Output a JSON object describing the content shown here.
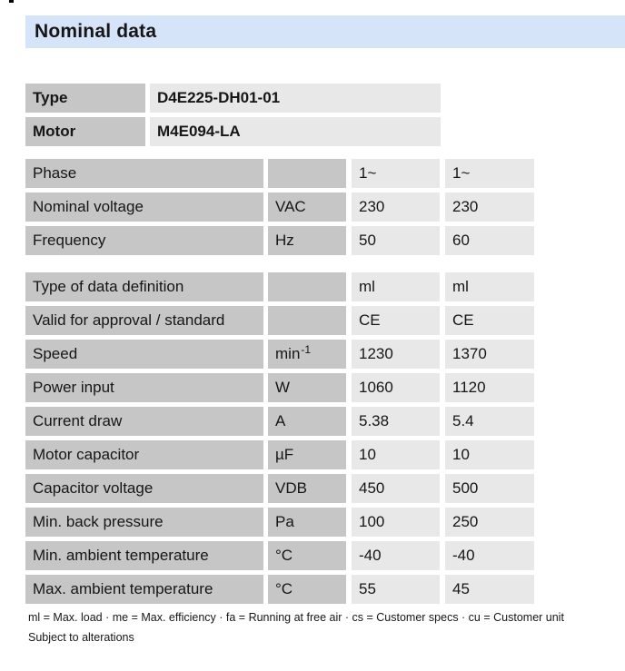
{
  "page": {
    "title": "Nominal data",
    "footnote_legend": "ml = Max. load · me = Max. efficiency · fa = Running at free air · cs = Customer specs · cu = Customer unit",
    "footnote_alterations": "Subject to alterations"
  },
  "colors": {
    "title_band_bg": "#d6e4fa",
    "label_cell_bg": "#c6c6c6",
    "value_cell_bg": "#e8e8e8",
    "text": "#161616"
  },
  "identification": {
    "rows": [
      {
        "label": "Type",
        "value": "D4E225-DH01-01"
      },
      {
        "label": "Motor",
        "value": "M4E094-LA"
      }
    ]
  },
  "spec_tables": [
    {
      "rows": [
        {
          "label": "Phase",
          "unit": "",
          "unit_sup": "",
          "v1": "1~",
          "v2": "1~"
        },
        {
          "label": "Nominal voltage",
          "unit": "VAC",
          "unit_sup": "",
          "v1": "230",
          "v2": "230"
        },
        {
          "label": "Frequency",
          "unit": "Hz",
          "unit_sup": "",
          "v1": "50",
          "v2": "60"
        }
      ]
    },
    {
      "rows": [
        {
          "label": "Type of data definition",
          "unit": "",
          "unit_sup": "",
          "v1": "ml",
          "v2": "ml"
        },
        {
          "label": "Valid for approval / standard",
          "unit": "",
          "unit_sup": "",
          "v1": "CE",
          "v2": "CE"
        },
        {
          "label": "Speed",
          "unit": "min",
          "unit_sup": "-1",
          "v1": "1230",
          "v2": "1370"
        },
        {
          "label": "Power input",
          "unit": "W",
          "unit_sup": "",
          "v1": "1060",
          "v2": "1120"
        },
        {
          "label": "Current draw",
          "unit": "A",
          "unit_sup": "",
          "v1": "5.38",
          "v2": "5.4"
        },
        {
          "label": "Motor capacitor",
          "unit": "µF",
          "unit_sup": "",
          "v1": "10",
          "v2": "10"
        },
        {
          "label": "Capacitor voltage",
          "unit": "VDB",
          "unit_sup": "",
          "v1": "450",
          "v2": "500"
        },
        {
          "label": "Min. back pressure",
          "unit": "Pa",
          "unit_sup": "",
          "v1": "100",
          "v2": "250"
        },
        {
          "label": "Min. ambient temperature",
          "unit": "°C",
          "unit_sup": "",
          "v1": "-40",
          "v2": "-40"
        },
        {
          "label": "Max. ambient temperature",
          "unit": "°C",
          "unit_sup": "",
          "v1": "55",
          "v2": "45"
        }
      ]
    }
  ]
}
